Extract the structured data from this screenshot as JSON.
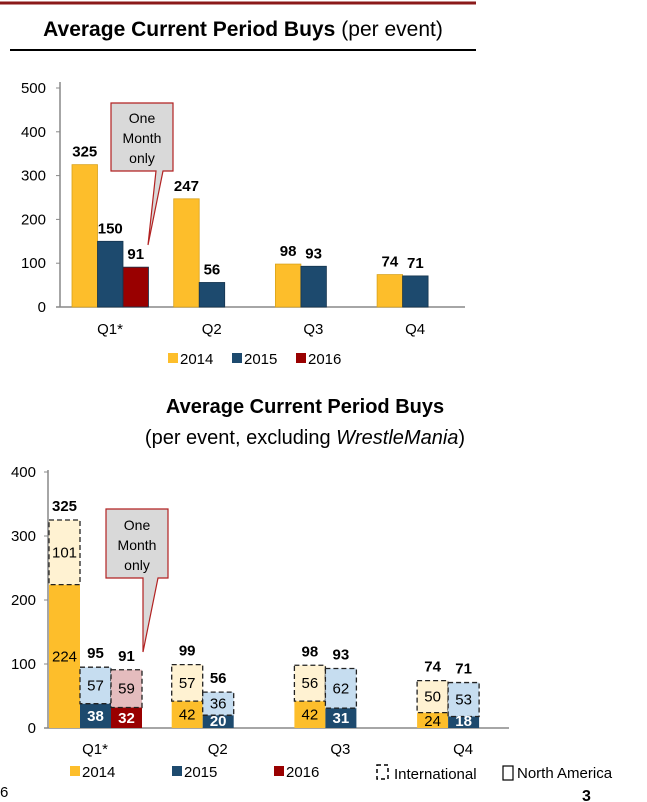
{
  "colors": {
    "y2014": "#FDBE2B",
    "y2015": "#1D4A6E",
    "y2016": "#990000",
    "intl2014": "#FFF2D2",
    "intl2015": "#C6DDF0",
    "intl2016": "#E4BCBE",
    "accent": "#8B1A1A"
  },
  "page": {
    "left_number": "6",
    "page_number": "3"
  },
  "chart_data": [
    {
      "type": "bar",
      "title": "Average Current Period Buys",
      "subtitle": "(per event)",
      "categories": [
        "Q1*",
        "Q2",
        "Q3",
        "Q4"
      ],
      "series": [
        {
          "name": "2014",
          "values": [
            325,
            247,
            98,
            74
          ]
        },
        {
          "name": "2015",
          "values": [
            150,
            56,
            93,
            71
          ]
        },
        {
          "name": "2016",
          "values": [
            91,
            null,
            null,
            null
          ]
        }
      ],
      "ylim": [
        0,
        500
      ],
      "yticks": [
        "0",
        "100",
        "200",
        "300",
        "400",
        "500"
      ],
      "callout": [
        "One",
        "Month",
        "only"
      ],
      "legend": [
        "2014",
        "2015",
        "2016"
      ],
      "legend_position": "bottom"
    },
    {
      "type": "bar",
      "stacked": true,
      "title": "Average Current Period Buys",
      "subtitle_prefix": "(per event, excluding ",
      "subtitle_italic": "WrestleMania",
      "subtitle_suffix": ")",
      "categories": [
        "Q1*",
        "Q2",
        "Q3",
        "Q4"
      ],
      "series": [
        {
          "name": "2014",
          "north_america": [
            224,
            42,
            42,
            24
          ],
          "international": [
            101,
            57,
            56,
            50
          ],
          "totals": [
            325,
            99,
            98,
            74
          ]
        },
        {
          "name": "2015",
          "north_america": [
            38,
            20,
            31,
            18
          ],
          "international": [
            57,
            36,
            62,
            53
          ],
          "totals": [
            95,
            56,
            93,
            71
          ]
        },
        {
          "name": "2016",
          "north_america": [
            32,
            null,
            null,
            null
          ],
          "international": [
            59,
            null,
            null,
            null
          ],
          "totals": [
            91,
            null,
            null,
            null
          ]
        }
      ],
      "ylim": [
        0,
        400
      ],
      "yticks": [
        "0",
        "100",
        "200",
        "300",
        "400"
      ],
      "callout": [
        "One",
        "Month",
        "only"
      ],
      "legend": [
        "2014",
        "2015",
        "2016",
        "International",
        "North America"
      ],
      "legend_position": "bottom"
    }
  ]
}
